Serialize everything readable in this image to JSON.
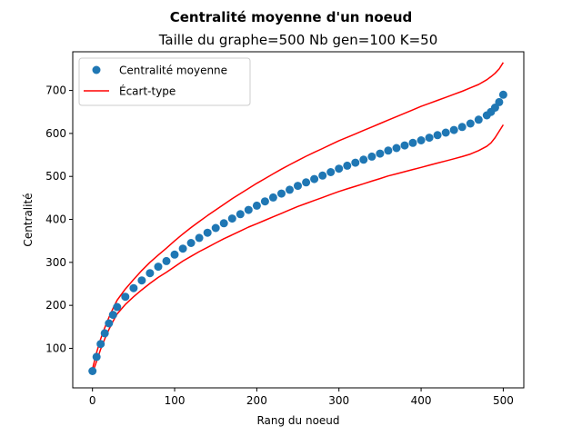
{
  "chart_data": {
    "type": "scatter",
    "title": "Centralité moyenne d'un noeud",
    "subtitle": "Taille du graphe=500 Nb gen=100 K=50",
    "xlabel": "Rang du noeud",
    "ylabel": "Centralité",
    "xlim": [
      -24,
      525
    ],
    "ylim": [
      8,
      790
    ],
    "xticks": [
      0,
      100,
      200,
      300,
      400,
      500
    ],
    "yticks": [
      100,
      200,
      300,
      400,
      500,
      600,
      700
    ],
    "grid": false,
    "legend": "top-left",
    "colors": {
      "mean": "#1f77b4",
      "std": "#ff0000"
    },
    "series": [
      {
        "name": "Centralité moyenne",
        "kind": "scatter",
        "x": [
          0,
          5,
          10,
          15,
          20,
          25,
          30,
          40,
          50,
          60,
          70,
          80,
          90,
          100,
          110,
          120,
          130,
          140,
          150,
          160,
          170,
          180,
          190,
          200,
          210,
          220,
          230,
          240,
          250,
          260,
          270,
          280,
          290,
          300,
          310,
          320,
          330,
          340,
          350,
          360,
          370,
          380,
          390,
          400,
          410,
          420,
          430,
          440,
          450,
          460,
          470,
          480,
          485,
          490,
          495,
          500
        ],
        "y": [
          47,
          80,
          110,
          135,
          158,
          178,
          196,
          220,
          240,
          258,
          275,
          290,
          303,
          318,
          332,
          345,
          357,
          369,
          380,
          391,
          402,
          412,
          422,
          432,
          442,
          451,
          460,
          469,
          478,
          486,
          494,
          502,
          510,
          518,
          525,
          532,
          539,
          546,
          553,
          560,
          566,
          572,
          578,
          584,
          590,
          596,
          602,
          608,
          615,
          623,
          632,
          642,
          650,
          660,
          673,
          690
        ]
      },
      {
        "name": "Écart-type",
        "kind": "line",
        "x": [
          0,
          5,
          10,
          15,
          20,
          25,
          30,
          40,
          50,
          60,
          70,
          80,
          90,
          100,
          110,
          120,
          130,
          140,
          150,
          160,
          170,
          180,
          190,
          200,
          210,
          220,
          230,
          240,
          250,
          260,
          270,
          280,
          290,
          300,
          310,
          320,
          330,
          340,
          350,
          360,
          370,
          380,
          390,
          400,
          410,
          420,
          430,
          440,
          450,
          460,
          470,
          480,
          485,
          490,
          495,
          500
        ],
        "y": [
          52,
          90,
          122,
          148,
          172,
          193,
          212,
          238,
          260,
          281,
          300,
          317,
          333,
          350,
          366,
          381,
          395,
          409,
          422,
          435,
          448,
          460,
          472,
          484,
          495,
          506,
          517,
          527,
          537,
          547,
          556,
          565,
          574,
          583,
          591,
          599,
          607,
          615,
          623,
          631,
          639,
          647,
          655,
          663,
          670,
          677,
          684,
          691,
          698,
          706,
          714,
          725,
          732,
          740,
          750,
          765
        ]
      },
      {
        "name": "",
        "kind": "line",
        "x": [
          0,
          5,
          10,
          15,
          20,
          25,
          30,
          40,
          50,
          60,
          70,
          80,
          90,
          100,
          110,
          120,
          130,
          140,
          150,
          160,
          170,
          180,
          190,
          200,
          210,
          220,
          230,
          240,
          250,
          260,
          270,
          280,
          290,
          300,
          310,
          320,
          330,
          340,
          350,
          360,
          370,
          380,
          390,
          400,
          410,
          420,
          430,
          440,
          450,
          460,
          470,
          480,
          485,
          490,
          495,
          500
        ],
        "y": [
          42,
          70,
          98,
          122,
          144,
          163,
          180,
          202,
          220,
          236,
          251,
          265,
          277,
          290,
          303,
          314,
          325,
          335,
          345,
          355,
          364,
          373,
          382,
          390,
          398,
          406,
          414,
          422,
          430,
          437,
          444,
          451,
          458,
          465,
          471,
          477,
          483,
          489,
          495,
          501,
          506,
          511,
          516,
          521,
          526,
          531,
          536,
          541,
          546,
          552,
          560,
          570,
          578,
          590,
          605,
          620
        ]
      }
    ]
  }
}
